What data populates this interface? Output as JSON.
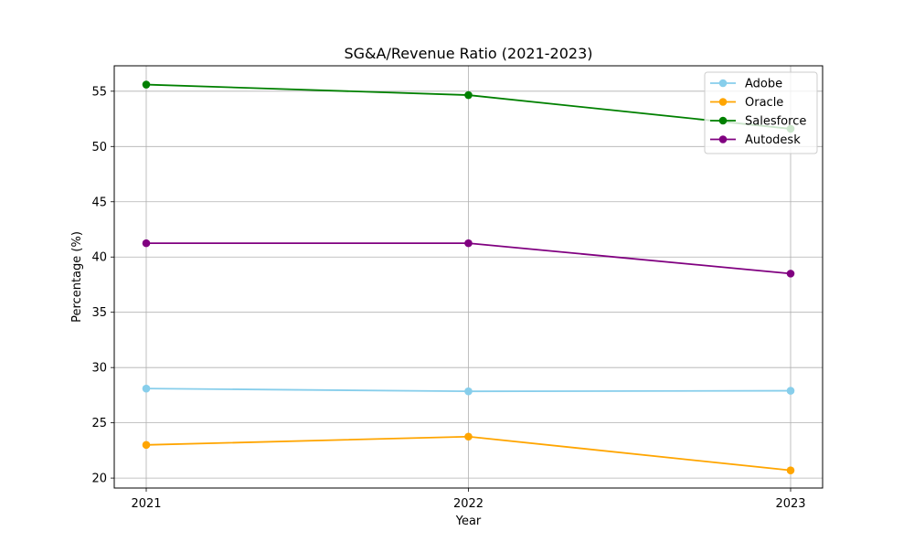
{
  "chart_data": {
    "type": "line",
    "title": "SG&A/Revenue Ratio (2021-2023)",
    "xlabel": "Year",
    "ylabel": "Percentage (%)",
    "categories": [
      "2021",
      "2022",
      "2023"
    ],
    "yticks": [
      20,
      25,
      30,
      35,
      40,
      45,
      50,
      55
    ],
    "ylim": [
      19.1,
      57.3
    ],
    "grid": true,
    "legend_position": "top-right",
    "series": [
      {
        "name": "Adobe",
        "color": "#87ceeb",
        "values": [
          28.1,
          27.85,
          27.9
        ]
      },
      {
        "name": "Oracle",
        "color": "#ffa500",
        "values": [
          23.0,
          23.75,
          20.7
        ]
      },
      {
        "name": "Salesforce",
        "color": "#008000",
        "values": [
          55.6,
          54.65,
          51.6
        ]
      },
      {
        "name": "Autodesk",
        "color": "#800080",
        "values": [
          41.25,
          41.25,
          38.5
        ]
      }
    ]
  }
}
